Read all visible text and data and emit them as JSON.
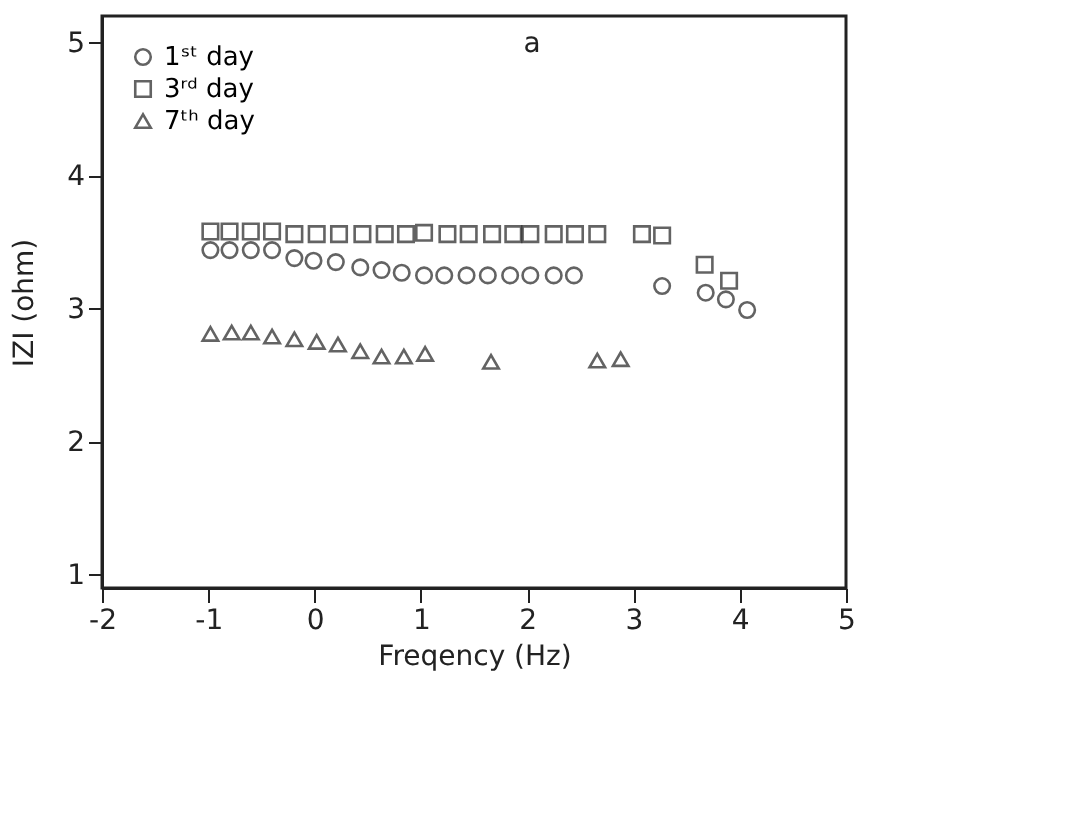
{
  "chart_data": {
    "type": "scatter",
    "xlabel": "Freqency (Hz)",
    "ylabel": "IZI (ohm)",
    "xlim": [
      -2,
      5
    ],
    "xticks": [
      -2,
      -1,
      0,
      1,
      2,
      3,
      4,
      5
    ],
    "ylim": [
      0.9,
      5.2
    ],
    "yticks": [
      1,
      2,
      3,
      4,
      5
    ],
    "grid": false,
    "legend": "top left",
    "annotations": [
      "a"
    ],
    "series": [
      {
        "name": "1ˢᵗ day",
        "color": "#222222",
        "marker": "circle",
        "x": [
          -0.98,
          -0.8,
          -0.6,
          -0.4,
          -0.19,
          -0.01,
          0.2,
          0.43,
          0.63,
          0.82,
          1.03,
          1.22,
          1.43,
          1.63,
          1.84,
          2.03,
          2.25,
          2.44,
          3.27,
          3.68,
          3.87,
          4.07
        ],
        "values": [
          3.44,
          3.44,
          3.44,
          3.44,
          3.38,
          3.36,
          3.35,
          3.31,
          3.29,
          3.27,
          3.25,
          3.25,
          3.25,
          3.25,
          3.25,
          3.25,
          3.25,
          3.25,
          3.17,
          3.12,
          3.07,
          2.99
        ]
      },
      {
        "name": "3ʳᵈ day",
        "color": "#222222",
        "marker": "square",
        "x": [
          -0.98,
          -0.8,
          -0.6,
          -0.4,
          -0.19,
          0.02,
          0.23,
          0.45,
          0.66,
          0.86,
          1.03,
          1.25,
          1.45,
          1.67,
          1.87,
          2.03,
          2.25,
          2.45,
          2.66,
          3.08,
          3.27,
          3.67,
          3.9
        ],
        "values": [
          3.58,
          3.58,
          3.58,
          3.58,
          3.56,
          3.56,
          3.56,
          3.56,
          3.56,
          3.56,
          3.57,
          3.56,
          3.56,
          3.56,
          3.56,
          3.56,
          3.56,
          3.56,
          3.56,
          3.56,
          3.55,
          3.33,
          3.21
        ]
      },
      {
        "name": "7ᵗʰ day",
        "color": "#222222",
        "marker": "triangle",
        "x": [
          -0.98,
          -0.78,
          -0.6,
          -0.4,
          -0.19,
          0.02,
          0.22,
          0.43,
          0.63,
          0.84,
          1.04,
          1.66,
          2.66,
          2.88
        ],
        "values": [
          2.81,
          2.82,
          2.82,
          2.79,
          2.77,
          2.75,
          2.73,
          2.68,
          2.64,
          2.64,
          2.66,
          2.6,
          2.61,
          2.62
        ]
      }
    ]
  }
}
